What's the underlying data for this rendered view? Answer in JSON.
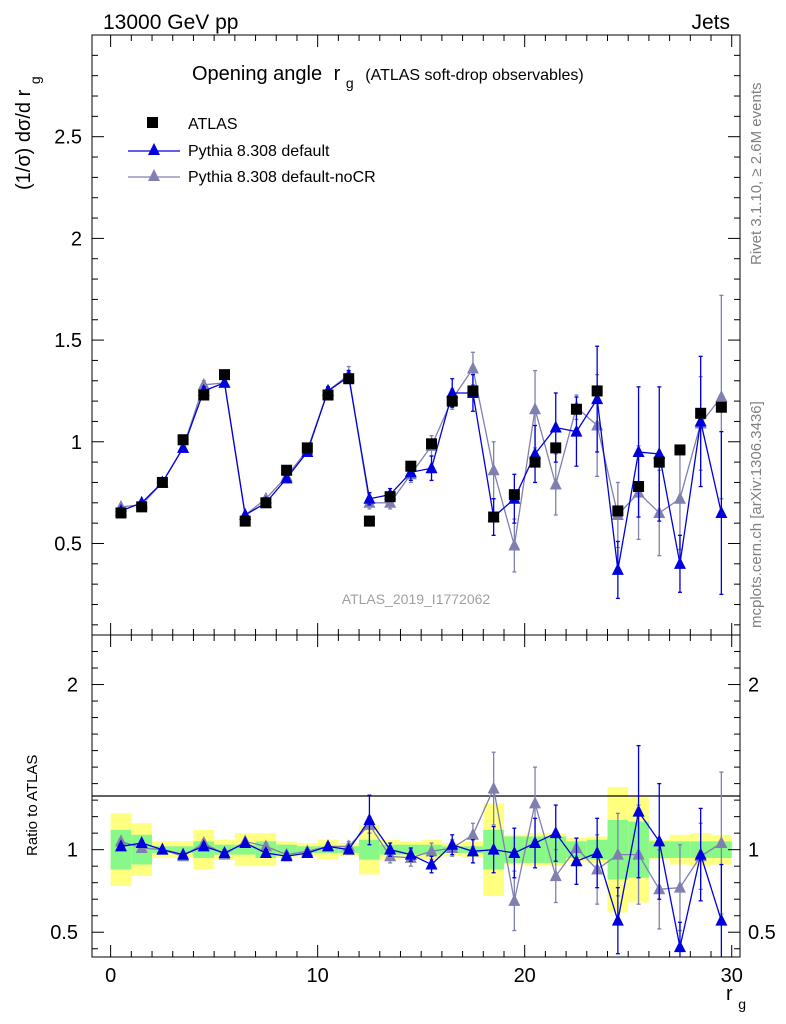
{
  "header": {
    "left": "13000 GeV pp",
    "right": "Jets"
  },
  "side_labels": {
    "rivet": "Rivet 3.1.10, ≥ 2.6M events",
    "mcplots": "mcplots.cern.ch [arXiv:1306.3436]"
  },
  "chart_data": [
    {
      "type": "scatter",
      "title": "Opening angle",
      "title_symbol": "r",
      "title_subscript": "g",
      "subtitle": "(ATLAS soft-drop observables)",
      "ylabel": "(1/σ) dσ/d r",
      "ylabel_subscript": "g",
      "watermark": "ATLAS_2019_I1772062",
      "xlim": [
        -0.9,
        30.4
      ],
      "ylim": [
        0.05,
        3.0
      ],
      "yticks": [
        0.5,
        1,
        1.5,
        2,
        2.5
      ],
      "ytick_labels": [
        "0.5",
        "1",
        "1.5",
        "2",
        "2.5"
      ],
      "legend_position": "top-left",
      "x": [
        0.5,
        1.5,
        2.5,
        3.5,
        4.5,
        5.5,
        6.5,
        7.5,
        8.5,
        9.5,
        10.5,
        11.5,
        12.5,
        13.5,
        14.5,
        15.5,
        16.5,
        17.5,
        18.5,
        19.5,
        20.5,
        21.5,
        22.5,
        23.5,
        24.5,
        25.5,
        26.5,
        27.5,
        28.5,
        29.5
      ],
      "series": [
        {
          "name": "ATLAS",
          "color": "#000000",
          "marker": "square",
          "values": [
            0.65,
            0.68,
            0.8,
            1.01,
            1.23,
            1.33,
            0.61,
            0.7,
            0.86,
            0.97,
            1.23,
            1.31,
            0.61,
            0.73,
            0.88,
            0.99,
            1.2,
            1.25,
            0.63,
            0.74,
            0.9,
            0.97,
            1.16,
            1.25,
            0.66,
            0.78,
            0.9,
            0.96,
            1.14,
            1.17
          ]
        },
        {
          "name": "Pythia 8.308 default",
          "color": "#0000dd",
          "marker": "triangle",
          "values": [
            0.66,
            0.7,
            0.8,
            0.97,
            1.25,
            1.29,
            0.64,
            0.7,
            0.82,
            0.95,
            1.25,
            1.32,
            0.72,
            0.74,
            0.85,
            0.87,
            1.24,
            1.24,
            0.63,
            0.72,
            0.94,
            1.07,
            1.05,
            1.21,
            0.37,
            0.95,
            0.94,
            0.4,
            1.1,
            0.65
          ],
          "errors": [
            0.01,
            0.01,
            0.01,
            0.01,
            0.02,
            0.02,
            0.01,
            0.01,
            0.02,
            0.02,
            0.02,
            0.03,
            0.03,
            0.03,
            0.04,
            0.06,
            0.07,
            0.09,
            0.09,
            0.12,
            0.14,
            0.17,
            0.17,
            0.26,
            0.14,
            0.32,
            0.33,
            0.14,
            0.32,
            0.4
          ]
        },
        {
          "name": "Pythia 8.308 default-noCR",
          "color": "#8080b0",
          "marker": "triangle",
          "values": [
            0.68,
            0.69,
            0.8,
            0.97,
            1.28,
            1.29,
            0.64,
            0.72,
            0.83,
            0.96,
            1.25,
            1.33,
            0.7,
            0.7,
            0.84,
            0.98,
            1.21,
            1.36,
            0.86,
            0.49,
            1.16,
            0.79,
            1.17,
            1.08,
            0.64,
            0.75,
            0.65,
            0.72,
            1.09,
            1.22
          ],
          "errors": [
            0.01,
            0.01,
            0.01,
            0.01,
            0.02,
            0.02,
            0.01,
            0.01,
            0.02,
            0.02,
            0.02,
            0.04,
            0.03,
            0.03,
            0.04,
            0.05,
            0.05,
            0.08,
            0.14,
            0.13,
            0.19,
            0.15,
            0.06,
            0.25,
            0.16,
            0.23,
            0.21,
            0.25,
            0.23,
            0.5
          ]
        }
      ]
    },
    {
      "type": "scatter",
      "ylabel": "Ratio to ATLAS",
      "xlabel": "r",
      "xlabel_subscript": "g",
      "xlim": [
        -0.9,
        30.4
      ],
      "ylim": [
        0.35,
        2.3
      ],
      "xticks": [
        0,
        10,
        20,
        30
      ],
      "xtick_labels": [
        "0",
        "10",
        "20",
        "30"
      ],
      "yticks": [
        0.5,
        1,
        2
      ],
      "ytick_labels": [
        "0.5",
        "1",
        "2"
      ],
      "bands": {
        "inner_color": "#88f888",
        "outer_color": "#ffff80",
        "inner_halfwidth": [
          0.12,
          0.09,
          0.02,
          0.02,
          0.05,
          0.03,
          0.03,
          0.05,
          0.03,
          0.02,
          0.02,
          0.02,
          0.06,
          0.03,
          0.03,
          0.03,
          0.02,
          0.02,
          0.12,
          0.08,
          0.08,
          0.08,
          0.05,
          0.06,
          0.18,
          0.17,
          0.05,
          0.05,
          0.05,
          0.05
        ],
        "outer_halfwidth": [
          0.22,
          0.16,
          0.05,
          0.05,
          0.12,
          0.06,
          0.1,
          0.1,
          0.05,
          0.04,
          0.06,
          0.04,
          0.15,
          0.06,
          0.05,
          0.06,
          0.04,
          0.05,
          0.28,
          0.09,
          0.1,
          0.1,
          0.07,
          0.08,
          0.38,
          0.32,
          0.06,
          0.09,
          0.1,
          0.09
        ]
      },
      "series": [
        {
          "name": "Pythia 8.308 default",
          "color": "#0000dd",
          "values": [
            1.02,
            1.04,
            1.0,
            0.97,
            1.02,
            0.98,
            1.04,
            0.98,
            0.96,
            0.98,
            1.02,
            1.0,
            1.18,
            1.0,
            0.97,
            0.91,
            1.03,
            0.99,
            1.0,
            0.98,
            1.04,
            1.1,
            0.93,
            0.98,
            0.57,
            1.23,
            1.05,
            0.41,
            0.97,
            0.57
          ],
          "errors": [
            0.01,
            0.01,
            0.01,
            0.01,
            0.02,
            0.02,
            0.01,
            0.02,
            0.02,
            0.02,
            0.02,
            0.02,
            0.15,
            0.04,
            0.04,
            0.05,
            0.06,
            0.07,
            0.14,
            0.15,
            0.15,
            0.17,
            0.14,
            0.21,
            0.2,
            0.4,
            0.35,
            0.15,
            0.28,
            0.34
          ]
        },
        {
          "name": "Pythia 8.308 default-noCR",
          "color": "#8080b0",
          "values": [
            1.05,
            1.01,
            1.0,
            0.96,
            1.04,
            0.97,
            1.05,
            1.02,
            0.97,
            0.99,
            1.02,
            1.02,
            1.15,
            0.96,
            0.95,
            0.99,
            1.01,
            1.09,
            1.37,
            0.69,
            1.28,
            0.84,
            1.01,
            0.88,
            0.97,
            0.97,
            0.76,
            0.77,
            0.96,
            1.04
          ],
          "errors": [
            0.01,
            0.01,
            0.01,
            0.01,
            0.02,
            0.02,
            0.01,
            0.02,
            0.02,
            0.02,
            0.02,
            0.03,
            0.05,
            0.04,
            0.05,
            0.05,
            0.05,
            0.07,
            0.22,
            0.18,
            0.22,
            0.16,
            0.06,
            0.21,
            0.25,
            0.3,
            0.24,
            0.26,
            0.2,
            0.43
          ]
        }
      ]
    }
  ]
}
